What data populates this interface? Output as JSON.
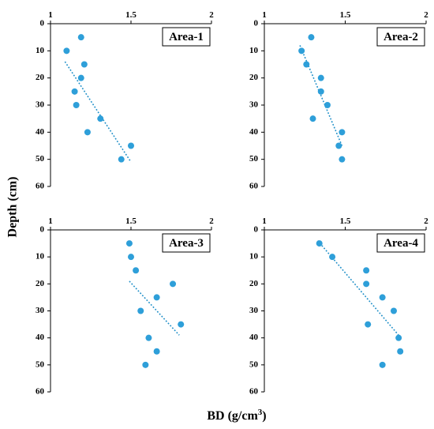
{
  "chart_data": [
    {
      "type": "scatter",
      "label": "Area-1",
      "x_ticks": [
        "1",
        "1.5",
        "2"
      ],
      "y_ticks": [
        "0",
        "10",
        "20",
        "30",
        "40",
        "50",
        "60"
      ],
      "xlim": [
        1,
        2
      ],
      "ylim": [
        0,
        60
      ],
      "y_inverted": true,
      "points": [
        {
          "x": 1.19,
          "y": 5
        },
        {
          "x": 1.1,
          "y": 10
        },
        {
          "x": 1.21,
          "y": 15
        },
        {
          "x": 1.19,
          "y": 20
        },
        {
          "x": 1.15,
          "y": 25
        },
        {
          "x": 1.16,
          "y": 30
        },
        {
          "x": 1.31,
          "y": 35
        },
        {
          "x": 1.23,
          "y": 40
        },
        {
          "x": 1.5,
          "y": 45
        },
        {
          "x": 1.44,
          "y": 50
        }
      ],
      "trendline": {
        "x": [
          1.09,
          1.5
        ],
        "y": [
          14,
          51
        ]
      },
      "marker_color": "#2e9fd9",
      "trend_color": "#1f8fc8"
    },
    {
      "type": "scatter",
      "label": "Area-2",
      "x_ticks": [
        "1",
        "1.5",
        "2"
      ],
      "y_ticks": [
        "0",
        "10",
        "20",
        "30",
        "40",
        "50",
        "60"
      ],
      "xlim": [
        1,
        2
      ],
      "ylim": [
        0,
        60
      ],
      "y_inverted": true,
      "points": [
        {
          "x": 1.29,
          "y": 5
        },
        {
          "x": 1.23,
          "y": 10
        },
        {
          "x": 1.26,
          "y": 15
        },
        {
          "x": 1.35,
          "y": 20
        },
        {
          "x": 1.35,
          "y": 25
        },
        {
          "x": 1.39,
          "y": 30
        },
        {
          "x": 1.3,
          "y": 35
        },
        {
          "x": 1.48,
          "y": 40
        },
        {
          "x": 1.46,
          "y": 45
        },
        {
          "x": 1.48,
          "y": 50
        }
      ],
      "trendline": {
        "x": [
          1.22,
          1.48
        ],
        "y": [
          8,
          45
        ]
      },
      "marker_color": "#2e9fd9",
      "trend_color": "#1f8fc8"
    },
    {
      "type": "scatter",
      "label": "Area-3",
      "x_ticks": [
        "1",
        "1.5",
        "2"
      ],
      "y_ticks": [
        "0",
        "10",
        "20",
        "30",
        "40",
        "50",
        "60"
      ],
      "xlim": [
        1,
        2
      ],
      "ylim": [
        0,
        60
      ],
      "y_inverted": true,
      "points": [
        {
          "x": 1.49,
          "y": 5
        },
        {
          "x": 1.5,
          "y": 10
        },
        {
          "x": 1.53,
          "y": 15
        },
        {
          "x": 1.76,
          "y": 20
        },
        {
          "x": 1.66,
          "y": 25
        },
        {
          "x": 1.56,
          "y": 30
        },
        {
          "x": 1.81,
          "y": 35
        },
        {
          "x": 1.61,
          "y": 40
        },
        {
          "x": 1.66,
          "y": 45
        },
        {
          "x": 1.59,
          "y": 50
        }
      ],
      "trendline": {
        "x": [
          1.49,
          1.8
        ],
        "y": [
          19,
          39
        ]
      },
      "marker_color": "#2e9fd9",
      "trend_color": "#1f8fc8"
    },
    {
      "type": "scatter",
      "label": "Area-4",
      "x_ticks": [
        "1",
        "1.5",
        "2"
      ],
      "y_ticks": [
        "0",
        "10",
        "20",
        "30",
        "40",
        "50",
        "60"
      ],
      "xlim": [
        1,
        2
      ],
      "ylim": [
        0,
        60
      ],
      "y_inverted": true,
      "points": [
        {
          "x": 1.34,
          "y": 5
        },
        {
          "x": 1.42,
          "y": 10
        },
        {
          "x": 1.63,
          "y": 15
        },
        {
          "x": 1.63,
          "y": 20
        },
        {
          "x": 1.73,
          "y": 25
        },
        {
          "x": 1.8,
          "y": 30
        },
        {
          "x": 1.64,
          "y": 35
        },
        {
          "x": 1.83,
          "y": 40
        },
        {
          "x": 1.84,
          "y": 45
        },
        {
          "x": 1.73,
          "y": 50
        }
      ],
      "trendline": {
        "x": [
          1.33,
          1.83
        ],
        "y": [
          4,
          39
        ]
      },
      "marker_color": "#2e9fd9",
      "trend_color": "#1f8fc8"
    }
  ],
  "y_axis_title": "Depth  (cm)",
  "x_axis_title_main": "BD  (g/cm",
  "x_axis_title_sup": "3",
  "x_axis_title_end": ")"
}
